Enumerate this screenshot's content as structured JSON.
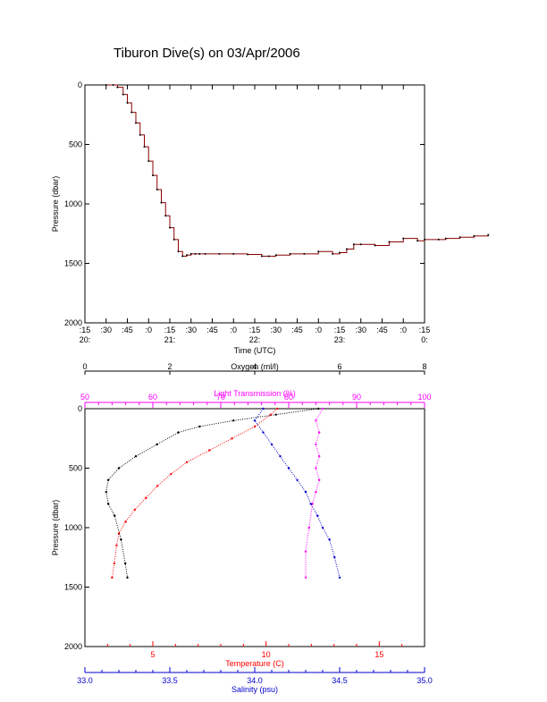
{
  "title": "Tiburon Dive(s) on 03/Apr/2006",
  "colors": {
    "depth_trace": "#8b0000",
    "temperature": "#ff0000",
    "salinity": "#0000cc",
    "oxygen": "#000000",
    "light_transmission": "#ff00ff"
  },
  "chart_data": [
    {
      "type": "line",
      "title": "Tiburon Dive(s) on 03/Apr/2006",
      "xlabel": "Time (UTC)",
      "ylabel": "Pressure (dbar)",
      "ylim": [
        2000,
        0
      ],
      "y_ticks": [
        "0",
        "500",
        "1000",
        "1500",
        "2000"
      ],
      "x_ticks_minutes": [
        ":15",
        ":30",
        ":45",
        ":0",
        ":15",
        ":30",
        ":45",
        ":0",
        ":15",
        ":30",
        ":45",
        ":0",
        ":15",
        ":30",
        ":45",
        ":0",
        ":15"
      ],
      "x_ticks_hours": [
        "20:",
        "21:",
        "22:",
        "23:",
        "0:"
      ],
      "series": [
        {
          "x_minutes_since_20_15": [
            0,
            5,
            8,
            12,
            15,
            18,
            21,
            24,
            27,
            30,
            33,
            36,
            39,
            42,
            45,
            48,
            51,
            54,
            57,
            60,
            63,
            66,
            70,
            80,
            90,
            100,
            110,
            115,
            120,
            130,
            140,
            150,
            160,
            165,
            170,
            175,
            180,
            190,
            200,
            210,
            220,
            225,
            235,
            240,
            250,
            260,
            270
          ],
          "pressure": [
            0,
            0,
            20,
            80,
            150,
            230,
            320,
            420,
            520,
            640,
            760,
            880,
            990,
            1100,
            1200,
            1300,
            1400,
            1440,
            1430,
            1420,
            1420,
            1420,
            1420,
            1420,
            1420,
            1425,
            1440,
            1440,
            1430,
            1420,
            1420,
            1400,
            1420,
            1410,
            1380,
            1340,
            1340,
            1350,
            1320,
            1290,
            1310,
            1300,
            1300,
            1290,
            1280,
            1270,
            1260
          ]
        }
      ]
    },
    {
      "type": "scatter",
      "ylabel": "Pressure (dbar)",
      "ylim": [
        2000,
        0
      ],
      "y_ticks": [
        "0",
        "500",
        "1000",
        "1500",
        "2000"
      ],
      "axes": {
        "oxygen": {
          "label": "Oxygen (ml/l)",
          "range": [
            0,
            8
          ],
          "ticks": [
            "0",
            "2",
            "4",
            "6",
            "8"
          ]
        },
        "light_transmission": {
          "label": "Light Transmission (%)",
          "range": [
            50,
            100
          ],
          "ticks": [
            "50",
            "60",
            "70",
            "80",
            "90",
            "100"
          ]
        },
        "temperature": {
          "label": "Temperature (C)",
          "range": [
            2,
            17
          ],
          "ticks": [
            "5",
            "10",
            "15"
          ]
        },
        "salinity": {
          "label": "Salinity (psu)",
          "range": [
            33.0,
            35.0
          ],
          "ticks": [
            "33.0",
            "33.5",
            "34.0",
            "34.5",
            "35.0"
          ]
        }
      },
      "series": [
        {
          "name": "Temperature (C)",
          "x": [
            10.5,
            10.2,
            9.5,
            8.5,
            7.5,
            6.5,
            5.8,
            5.2,
            4.7,
            4.2,
            3.8,
            3.5,
            3.4,
            3.3,
            3.2
          ],
          "pressure": [
            0,
            50,
            150,
            250,
            350,
            450,
            550,
            650,
            750,
            850,
            950,
            1050,
            1150,
            1300,
            1420
          ]
        },
        {
          "name": "Salinity (psu)",
          "x": [
            34.05,
            34.0,
            34.05,
            34.1,
            34.15,
            34.2,
            34.25,
            34.3,
            34.33,
            34.37,
            34.4,
            34.44,
            34.47,
            34.5
          ],
          "pressure": [
            0,
            100,
            200,
            300,
            400,
            500,
            600,
            700,
            800,
            900,
            1000,
            1100,
            1250,
            1420
          ]
        },
        {
          "name": "Oxygen (ml/l)",
          "x": [
            5.5,
            4.5,
            3.5,
            2.7,
            2.2,
            1.7,
            1.2,
            0.8,
            0.55,
            0.5,
            0.55,
            0.7,
            0.85,
            0.95,
            1.0
          ],
          "pressure": [
            0,
            50,
            100,
            150,
            200,
            300,
            400,
            500,
            600,
            700,
            800,
            900,
            1100,
            1300,
            1420
          ]
        },
        {
          "name": "Light Transmission (%)",
          "x": [
            85,
            84,
            84.5,
            84,
            84.5,
            84,
            84.5,
            84,
            83.5,
            83,
            82.5,
            82.5
          ],
          "pressure": [
            0,
            100,
            200,
            300,
            400,
            500,
            600,
            700,
            800,
            1000,
            1200,
            1420
          ]
        }
      ]
    }
  ]
}
